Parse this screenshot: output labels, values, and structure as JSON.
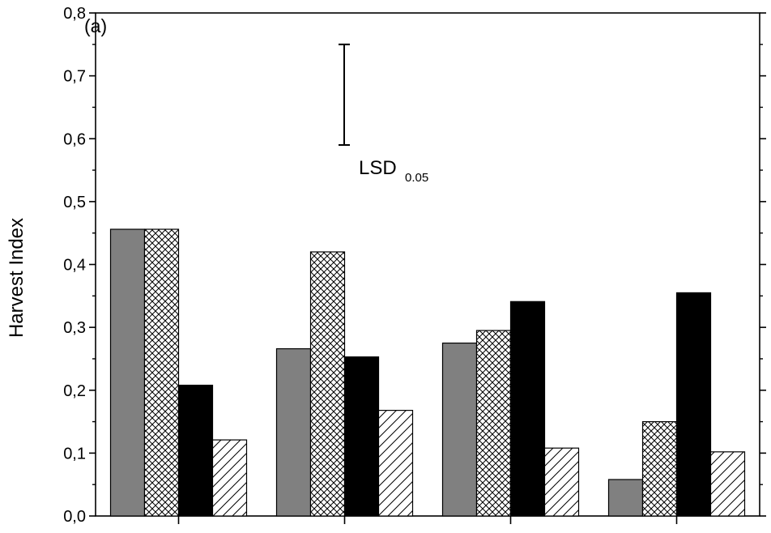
{
  "chart_data": {
    "type": "bar",
    "panel_label": "(a)",
    "ylabel": "Harvest Index",
    "xlabel": "",
    "ylim": [
      0,
      0.8
    ],
    "yticks": [
      "0,0",
      "0,1",
      "0,2",
      "0,3",
      "0,4",
      "0,5",
      "0,6",
      "0,7",
      "0,8"
    ],
    "ytick_values": [
      0,
      0.1,
      0.2,
      0.3,
      0.4,
      0.5,
      0.6,
      0.7,
      0.8
    ],
    "categories": [
      "",
      "",
      "",
      ""
    ],
    "series": [
      {
        "fill": "gray",
        "values": [
          0.456,
          0.266,
          0.275,
          0.058
        ]
      },
      {
        "fill": "crosshatch",
        "values": [
          0.456,
          0.42,
          0.295,
          0.15
        ]
      },
      {
        "fill": "black",
        "values": [
          0.208,
          0.253,
          0.341,
          0.355
        ]
      },
      {
        "fill": "diagonal",
        "values": [
          0.121,
          0.168,
          0.108,
          0.102
        ]
      }
    ],
    "lsd": {
      "label": "LSD",
      "subscript": "0.05",
      "low": 0.59,
      "high": 0.75
    },
    "grid": false,
    "legend": "none"
  },
  "colors": {
    "gray": "#808080",
    "black": "#000000",
    "outline": "#000000"
  }
}
